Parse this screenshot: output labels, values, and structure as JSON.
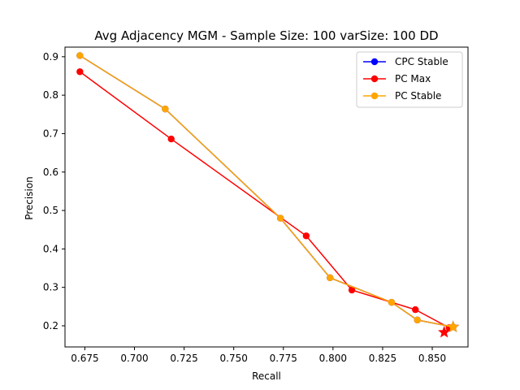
{
  "chart_data": {
    "type": "line",
    "title": "Avg Adjacency MGM - Sample Size: 100 varSize: 100 DD",
    "xlabel": "Recall",
    "ylabel": "Precision",
    "xlim": [
      0.665,
      0.868
    ],
    "ylim": [
      0.145,
      0.925
    ],
    "xticks": [
      0.675,
      0.7,
      0.725,
      0.75,
      0.775,
      0.8,
      0.825,
      0.85
    ],
    "xtick_labels": [
      "0.675",
      "0.700",
      "0.725",
      "0.750",
      "0.775",
      "0.800",
      "0.825",
      "0.850"
    ],
    "yticks": [
      0.2,
      0.3,
      0.4,
      0.5,
      0.6,
      0.7,
      0.8,
      0.9
    ],
    "ytick_labels": [
      "0.2",
      "0.3",
      "0.4",
      "0.5",
      "0.6",
      "0.7",
      "0.8",
      "0.9"
    ],
    "grid": false,
    "legend_position": "top-right",
    "series": [
      {
        "name": "CPC Stable",
        "color": "#0000ff",
        "points": [
          [
            0.6725,
            0.903
          ],
          [
            0.7155,
            0.764
          ],
          [
            0.7735,
            0.48
          ],
          [
            0.7985,
            0.325
          ],
          [
            0.8295,
            0.261
          ],
          [
            0.8425,
            0.215
          ],
          [
            0.8605,
            0.197
          ]
        ],
        "star": [
          0.8605,
          0.197
        ]
      },
      {
        "name": "PC Max",
        "color": "#ff0000",
        "points": [
          [
            0.6725,
            0.861
          ],
          [
            0.7185,
            0.686
          ],
          [
            0.7865,
            0.434
          ],
          [
            0.8095,
            0.293
          ],
          [
            0.8415,
            0.242
          ],
          [
            0.8585,
            0.195
          ]
        ],
        "star": [
          0.856,
          0.183
        ]
      },
      {
        "name": "PC Stable",
        "color": "#ffa500",
        "points": [
          [
            0.6725,
            0.903
          ],
          [
            0.7155,
            0.764
          ],
          [
            0.7735,
            0.48
          ],
          [
            0.7985,
            0.325
          ],
          [
            0.8295,
            0.261
          ],
          [
            0.8425,
            0.215
          ],
          [
            0.8605,
            0.197
          ]
        ],
        "star": [
          0.8605,
          0.197
        ]
      }
    ]
  }
}
